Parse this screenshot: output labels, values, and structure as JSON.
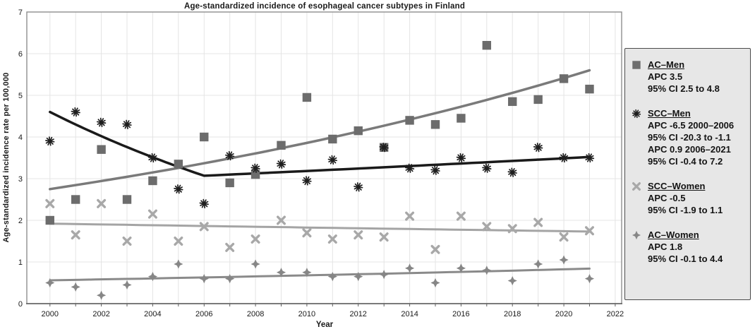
{
  "chart_data": {
    "type": "scatter",
    "title": "Age-standardized incidence of esophageal cancer subtypes in Finland",
    "xlabel": "Year",
    "ylabel": "Age-standardized incidence rate per 100,000",
    "xlim": [
      1999.1,
      2022.25
    ],
    "ylim": [
      0,
      7
    ],
    "xticks_labeled": [
      2000,
      2002,
      2004,
      2006,
      2008,
      2010,
      2012,
      2014,
      2016,
      2018,
      2020,
      2022
    ],
    "xgrid_every_year": true,
    "yticks": [
      0,
      1,
      2,
      3,
      4,
      5,
      6,
      7
    ],
    "grid": true,
    "legend_position": "right-outside",
    "years": [
      2000,
      2001,
      2002,
      2003,
      2004,
      2005,
      2006,
      2007,
      2008,
      2009,
      2010,
      2011,
      2012,
      2013,
      2014,
      2015,
      2016,
      2017,
      2018,
      2019,
      2020,
      2021
    ],
    "series": [
      {
        "name": "AC–Men",
        "marker": "square",
        "color": "#6c6c6c",
        "values": [
          2.0,
          2.5,
          3.7,
          2.5,
          2.95,
          3.35,
          4.0,
          2.9,
          3.1,
          3.8,
          4.95,
          3.95,
          4.15,
          3.75,
          4.4,
          4.3,
          4.45,
          6.2,
          4.85,
          4.9,
          5.4,
          5.15
        ],
        "trend": {
          "color": "#7a7a7a",
          "width": 3.5,
          "segments": [
            {
              "x1": 2000,
              "y1": 2.75,
              "x2": 2021,
              "y2": 5.6,
              "curve": "exp"
            }
          ]
        }
      },
      {
        "name": "SCC–Men",
        "marker": "asterisk",
        "color": "#1e1e1e",
        "values": [
          3.9,
          4.6,
          4.35,
          4.3,
          3.5,
          2.75,
          2.4,
          3.55,
          3.25,
          3.35,
          2.95,
          3.45,
          2.8,
          3.75,
          3.25,
          3.2,
          3.5,
          3.25,
          3.15,
          3.75,
          3.5,
          3.5
        ],
        "trend": {
          "color": "#1a1a1a",
          "width": 3.5,
          "segments": [
            {
              "x1": 2000,
              "y1": 4.6,
              "x2": 2006,
              "y2": 3.07,
              "curve": "exp"
            },
            {
              "x1": 2006,
              "y1": 3.07,
              "x2": 2021,
              "y2": 3.52,
              "curve": "exp"
            }
          ]
        }
      },
      {
        "name": "SCC–Women",
        "marker": "x",
        "color": "#a8a8a8",
        "values": [
          2.4,
          1.65,
          2.4,
          1.5,
          2.15,
          1.5,
          1.85,
          1.35,
          1.55,
          2.0,
          1.7,
          1.55,
          1.65,
          1.6,
          2.1,
          1.3,
          2.1,
          1.85,
          1.8,
          1.95,
          1.6,
          1.75
        ],
        "trend": {
          "color": "#a4a4a4",
          "width": 3,
          "segments": [
            {
              "x1": 2000,
              "y1": 1.92,
              "x2": 2021,
              "y2": 1.73,
              "curve": "exp"
            }
          ]
        }
      },
      {
        "name": "AC–Women",
        "marker": "diamond",
        "color": "#868686",
        "values": [
          0.5,
          0.4,
          0.2,
          0.45,
          0.65,
          0.95,
          0.6,
          0.6,
          0.95,
          0.75,
          0.75,
          0.65,
          0.65,
          0.7,
          0.85,
          0.5,
          0.85,
          0.8,
          0.55,
          0.95,
          1.05,
          0.6
        ],
        "trend": {
          "color": "#8a8a8a",
          "width": 3,
          "segments": [
            {
              "x1": 2000,
              "y1": 0.56,
              "x2": 2021,
              "y2": 0.84,
              "curve": "exp"
            }
          ]
        }
      }
    ]
  },
  "legend": {
    "items": [
      {
        "name": "AC–Men",
        "marker": "square",
        "color": "#6e6e6e",
        "lines": [
          "APC 3.5",
          "95% CI 2.5 to 4.8"
        ]
      },
      {
        "name": "SCC–Men",
        "marker": "asterisk",
        "color": "#1e1e1e",
        "lines": [
          "APC -6.5 2000–2006",
          "95% CI -20.3 to -1.1",
          "APC 0.9 2006–2021",
          "95% CI -0.4 to 7.2"
        ]
      },
      {
        "name": "SCC–Women",
        "marker": "x",
        "color": "#a8a8a8",
        "lines": [
          "APC -0.5",
          "95% CI -1.9 to 1.1"
        ]
      },
      {
        "name": "AC–Women",
        "marker": "diamond",
        "color": "#868686",
        "lines": [
          "APC 1.8",
          "95% CI -0.1 to 4.4"
        ]
      }
    ]
  }
}
